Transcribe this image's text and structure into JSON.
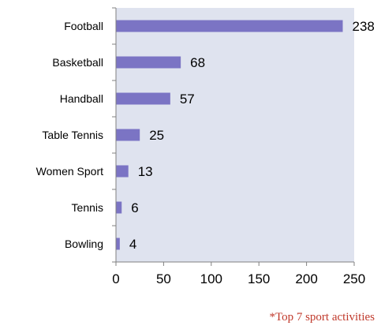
{
  "chart_data": {
    "type": "bar",
    "orientation": "horizontal",
    "categories": [
      "Football",
      "Basketball",
      "Handball",
      "Table Tennis",
      "Women Sport",
      "Tennis",
      "Bowling"
    ],
    "values": [
      238,
      68,
      57,
      25,
      13,
      6,
      4
    ],
    "title": "",
    "xlabel": "",
    "ylabel": "",
    "xlim": [
      0,
      250
    ],
    "xticks": [
      0,
      50,
      100,
      150,
      200,
      250
    ],
    "grid": false,
    "data_labels": true
  },
  "colors": {
    "bar": "#7b74c4",
    "plot_background": "#dfe3ef",
    "footnote": "#c0392b"
  },
  "footnote": "*Top 7 sport activities"
}
